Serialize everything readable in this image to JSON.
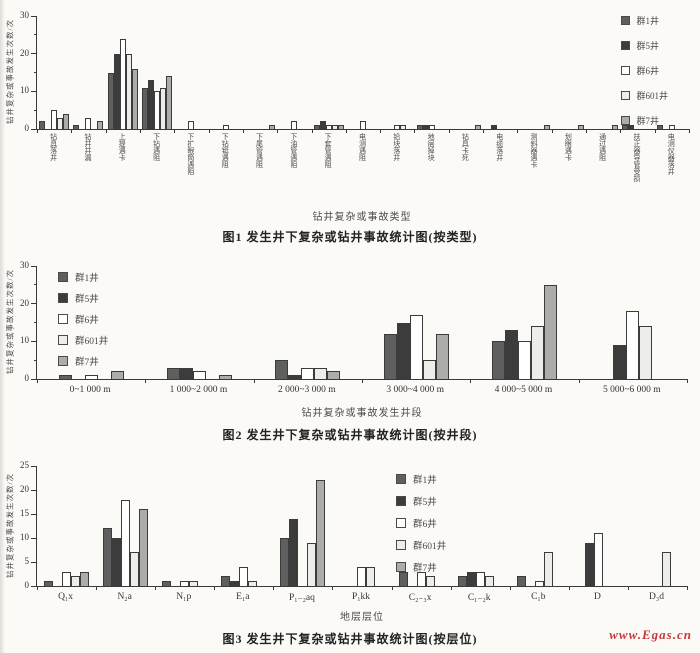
{
  "page": {
    "watermark": "www.Egas.cn",
    "watermark_color": "#c8393b"
  },
  "series_colors": {
    "群1井": "#5f5f5f",
    "群5井": "#3c3c3c",
    "群6井": "#ffffff",
    "群601井": "#ededea",
    "群7井": "#acaca8"
  },
  "chart_data": [
    {
      "type": "bar",
      "title": "图1  发生井下复杂或钻井事故统计图(按类型)",
      "xlabel": "钻井复杂或事故类型",
      "ylabel": "钻井复杂或事故发生次数/次",
      "ylim": [
        0,
        30
      ],
      "yticks": [
        0,
        10,
        20,
        30
      ],
      "yticks_minor": [
        5,
        15,
        25
      ],
      "legend_position": "right-top-outside",
      "grid": false,
      "categories": [
        "钻具落井",
        "钻井井漏",
        "上提遇卡",
        "下钻遇阻",
        "下扩眼筒遇阻",
        "下钻铤遇阻",
        "下尾管遇阻",
        "下油管遇阻",
        "下套管遇阻",
        "电测遇阻",
        "铅块落井",
        "地层掉块",
        "钻具卡死",
        "电缆落井",
        "测斜器遇卡",
        "划眼遇卡",
        "通过遇阻",
        "扶正器导管受损",
        "电测仪器落井"
      ],
      "series": [
        {
          "name": "群1井",
          "values": [
            2,
            1,
            15,
            11,
            0,
            0,
            0,
            0,
            1,
            0,
            0,
            1,
            0,
            0,
            0,
            0,
            0,
            1,
            1
          ]
        },
        {
          "name": "群5井",
          "values": [
            0,
            0,
            20,
            13,
            0,
            0,
            0,
            0,
            2,
            0,
            0,
            1,
            0,
            1,
            0,
            0,
            0,
            1,
            0
          ]
        },
        {
          "name": "群6井",
          "values": [
            5,
            3,
            24,
            10,
            2,
            1,
            0,
            2,
            1,
            2,
            1,
            1,
            0,
            0,
            0,
            0,
            0,
            0,
            1
          ]
        },
        {
          "name": "群601井",
          "values": [
            3,
            0,
            20,
            11,
            0,
            0,
            0,
            0,
            1,
            0,
            1,
            0,
            0,
            0,
            0,
            0,
            0,
            0,
            0
          ]
        },
        {
          "name": "群7井",
          "values": [
            4,
            2,
            16,
            14,
            0,
            0,
            1,
            0,
            1,
            0,
            0,
            0,
            1,
            0,
            1,
            1,
            1,
            0,
            0
          ]
        }
      ]
    },
    {
      "type": "bar",
      "title": "图2  发生井下复杂或钻井事故统计图(按井段)",
      "xlabel": "钻井复杂或事故发生井段",
      "ylabel": "钻井复杂或事故发生次数/次",
      "ylim": [
        0,
        30
      ],
      "yticks": [
        0,
        10,
        20,
        30
      ],
      "yticks_minor": [
        5,
        15,
        25
      ],
      "legend_position": "left-top-inside",
      "grid": false,
      "categories": [
        "0~1 000 m",
        "1 000~2 000 m",
        "2 000~3 000 m",
        "3 000~4 000 m",
        "4 000~5 000 m",
        "5 000~6 000 m"
      ],
      "series": [
        {
          "name": "群1井",
          "values": [
            1,
            3,
            5,
            12,
            10,
            0
          ]
        },
        {
          "name": "群5井",
          "values": [
            0,
            3,
            1,
            15,
            13,
            9
          ]
        },
        {
          "name": "群6井",
          "values": [
            1,
            2,
            3,
            17,
            10,
            18
          ]
        },
        {
          "name": "群601井",
          "values": [
            0,
            0,
            3,
            5,
            14,
            14
          ]
        },
        {
          "name": "群7井",
          "values": [
            2,
            1,
            2,
            12,
            25,
            0
          ]
        }
      ]
    },
    {
      "type": "bar",
      "title": "图3  发生井下复杂或钻井事故统计图(按层位)",
      "xlabel": "地层层位",
      "ylabel": "钻井复杂或事故发生次数/次",
      "ylim": [
        0,
        25
      ],
      "yticks": [
        0,
        5,
        10,
        15,
        20,
        25
      ],
      "yticks_minor": [],
      "legend_position": "center-top-inside",
      "grid": false,
      "categories": [
        "Q₁x",
        "N₂a",
        "N₁p",
        "E₁a",
        "P₁₋₂aq",
        "P₁kk",
        "C₂₋₃x",
        "C₁₋₂k",
        "C₁b",
        "D",
        "D₃d"
      ],
      "series": [
        {
          "name": "群1井",
          "values": [
            1,
            12,
            1,
            2,
            10,
            0,
            3,
            2,
            2,
            0,
            0
          ]
        },
        {
          "name": "群5井",
          "values": [
            0,
            10,
            0,
            1,
            14,
            0,
            0,
            3,
            0,
            9,
            0
          ]
        },
        {
          "name": "群6井",
          "values": [
            3,
            18,
            1,
            4,
            0,
            4,
            3,
            3,
            1,
            11,
            0
          ]
        },
        {
          "name": "群601井",
          "values": [
            2,
            7,
            1,
            1,
            9,
            4,
            2,
            2,
            7,
            0,
            7
          ]
        },
        {
          "name": "群7井",
          "values": [
            3,
            16,
            0,
            0,
            22,
            0,
            0,
            0,
            0,
            0,
            0
          ]
        }
      ]
    }
  ]
}
